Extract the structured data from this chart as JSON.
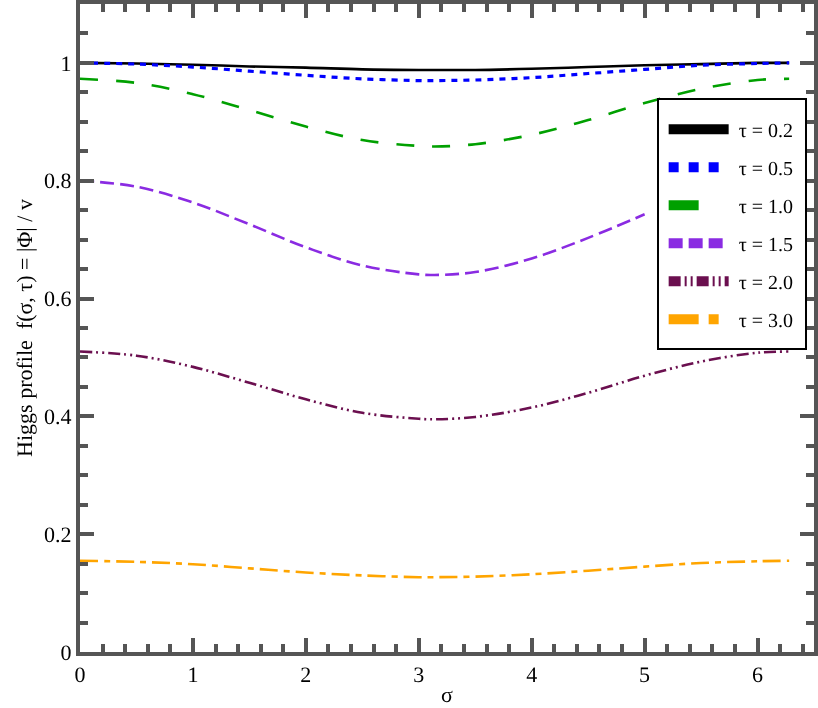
{
  "chart_data": {
    "type": "line",
    "xlabel": "σ",
    "ylabel": "Higgs profile  f(σ, τ) = |Φ| / v",
    "x": [
      0,
      0.5,
      1,
      1.5,
      2,
      2.5,
      3,
      3.14,
      3.5,
      4,
      4.5,
      5,
      5.5,
      6,
      6.28
    ],
    "series": [
      {
        "name": "τ = 0.2",
        "color": "#000000",
        "line_style": "solid",
        "values": [
          1.0,
          0.999,
          0.997,
          0.994,
          0.992,
          0.989,
          0.988,
          0.988,
          0.988,
          0.99,
          0.993,
          0.996,
          0.998,
          1.0,
          1.0
        ]
      },
      {
        "name": "τ = 0.5",
        "color": "#0000ff",
        "line_style": "dotted",
        "values": [
          1.0,
          0.998,
          0.993,
          0.986,
          0.979,
          0.973,
          0.97,
          0.97,
          0.971,
          0.975,
          0.982,
          0.989,
          0.996,
          0.999,
          1.0
        ]
      },
      {
        "name": "τ = 1.0",
        "color": "#00a000",
        "line_style": "dashed",
        "values": [
          0.973,
          0.966,
          0.947,
          0.92,
          0.892,
          0.869,
          0.859,
          0.858,
          0.862,
          0.878,
          0.903,
          0.932,
          0.956,
          0.971,
          0.973
        ]
      },
      {
        "name": "τ = 1.5",
        "color": "#8a2be2",
        "line_style": "longdash",
        "values": [
          0.8,
          0.79,
          0.763,
          0.726,
          0.687,
          0.656,
          0.641,
          0.64,
          0.645,
          0.668,
          0.703,
          0.743,
          null,
          null,
          null
        ]
      },
      {
        "name": "τ = 2.0",
        "color": "#6b0f4f",
        "line_style": "dashdotdot",
        "values": [
          0.51,
          0.503,
          0.484,
          0.457,
          0.429,
          0.406,
          0.396,
          0.395,
          0.399,
          0.415,
          0.44,
          0.469,
          0.493,
          0.508,
          0.51
        ]
      },
      {
        "name": "τ = 3.0",
        "color": "#ffa500",
        "line_style": "dashdot",
        "values": [
          0.155,
          0.153,
          0.149,
          0.142,
          0.135,
          0.13,
          0.127,
          0.127,
          0.128,
          0.132,
          0.138,
          0.145,
          0.151,
          0.154,
          0.155
        ]
      }
    ],
    "xlim": [
      0,
      6.5
    ],
    "xticks": [
      0,
      1,
      2,
      3,
      4,
      5,
      6
    ],
    "ylim": [
      0,
      1.1
    ],
    "yticks": [
      0,
      0.2,
      0.4,
      0.6,
      0.8,
      1
    ],
    "grid": false,
    "legend": "right",
    "marker": "none"
  }
}
